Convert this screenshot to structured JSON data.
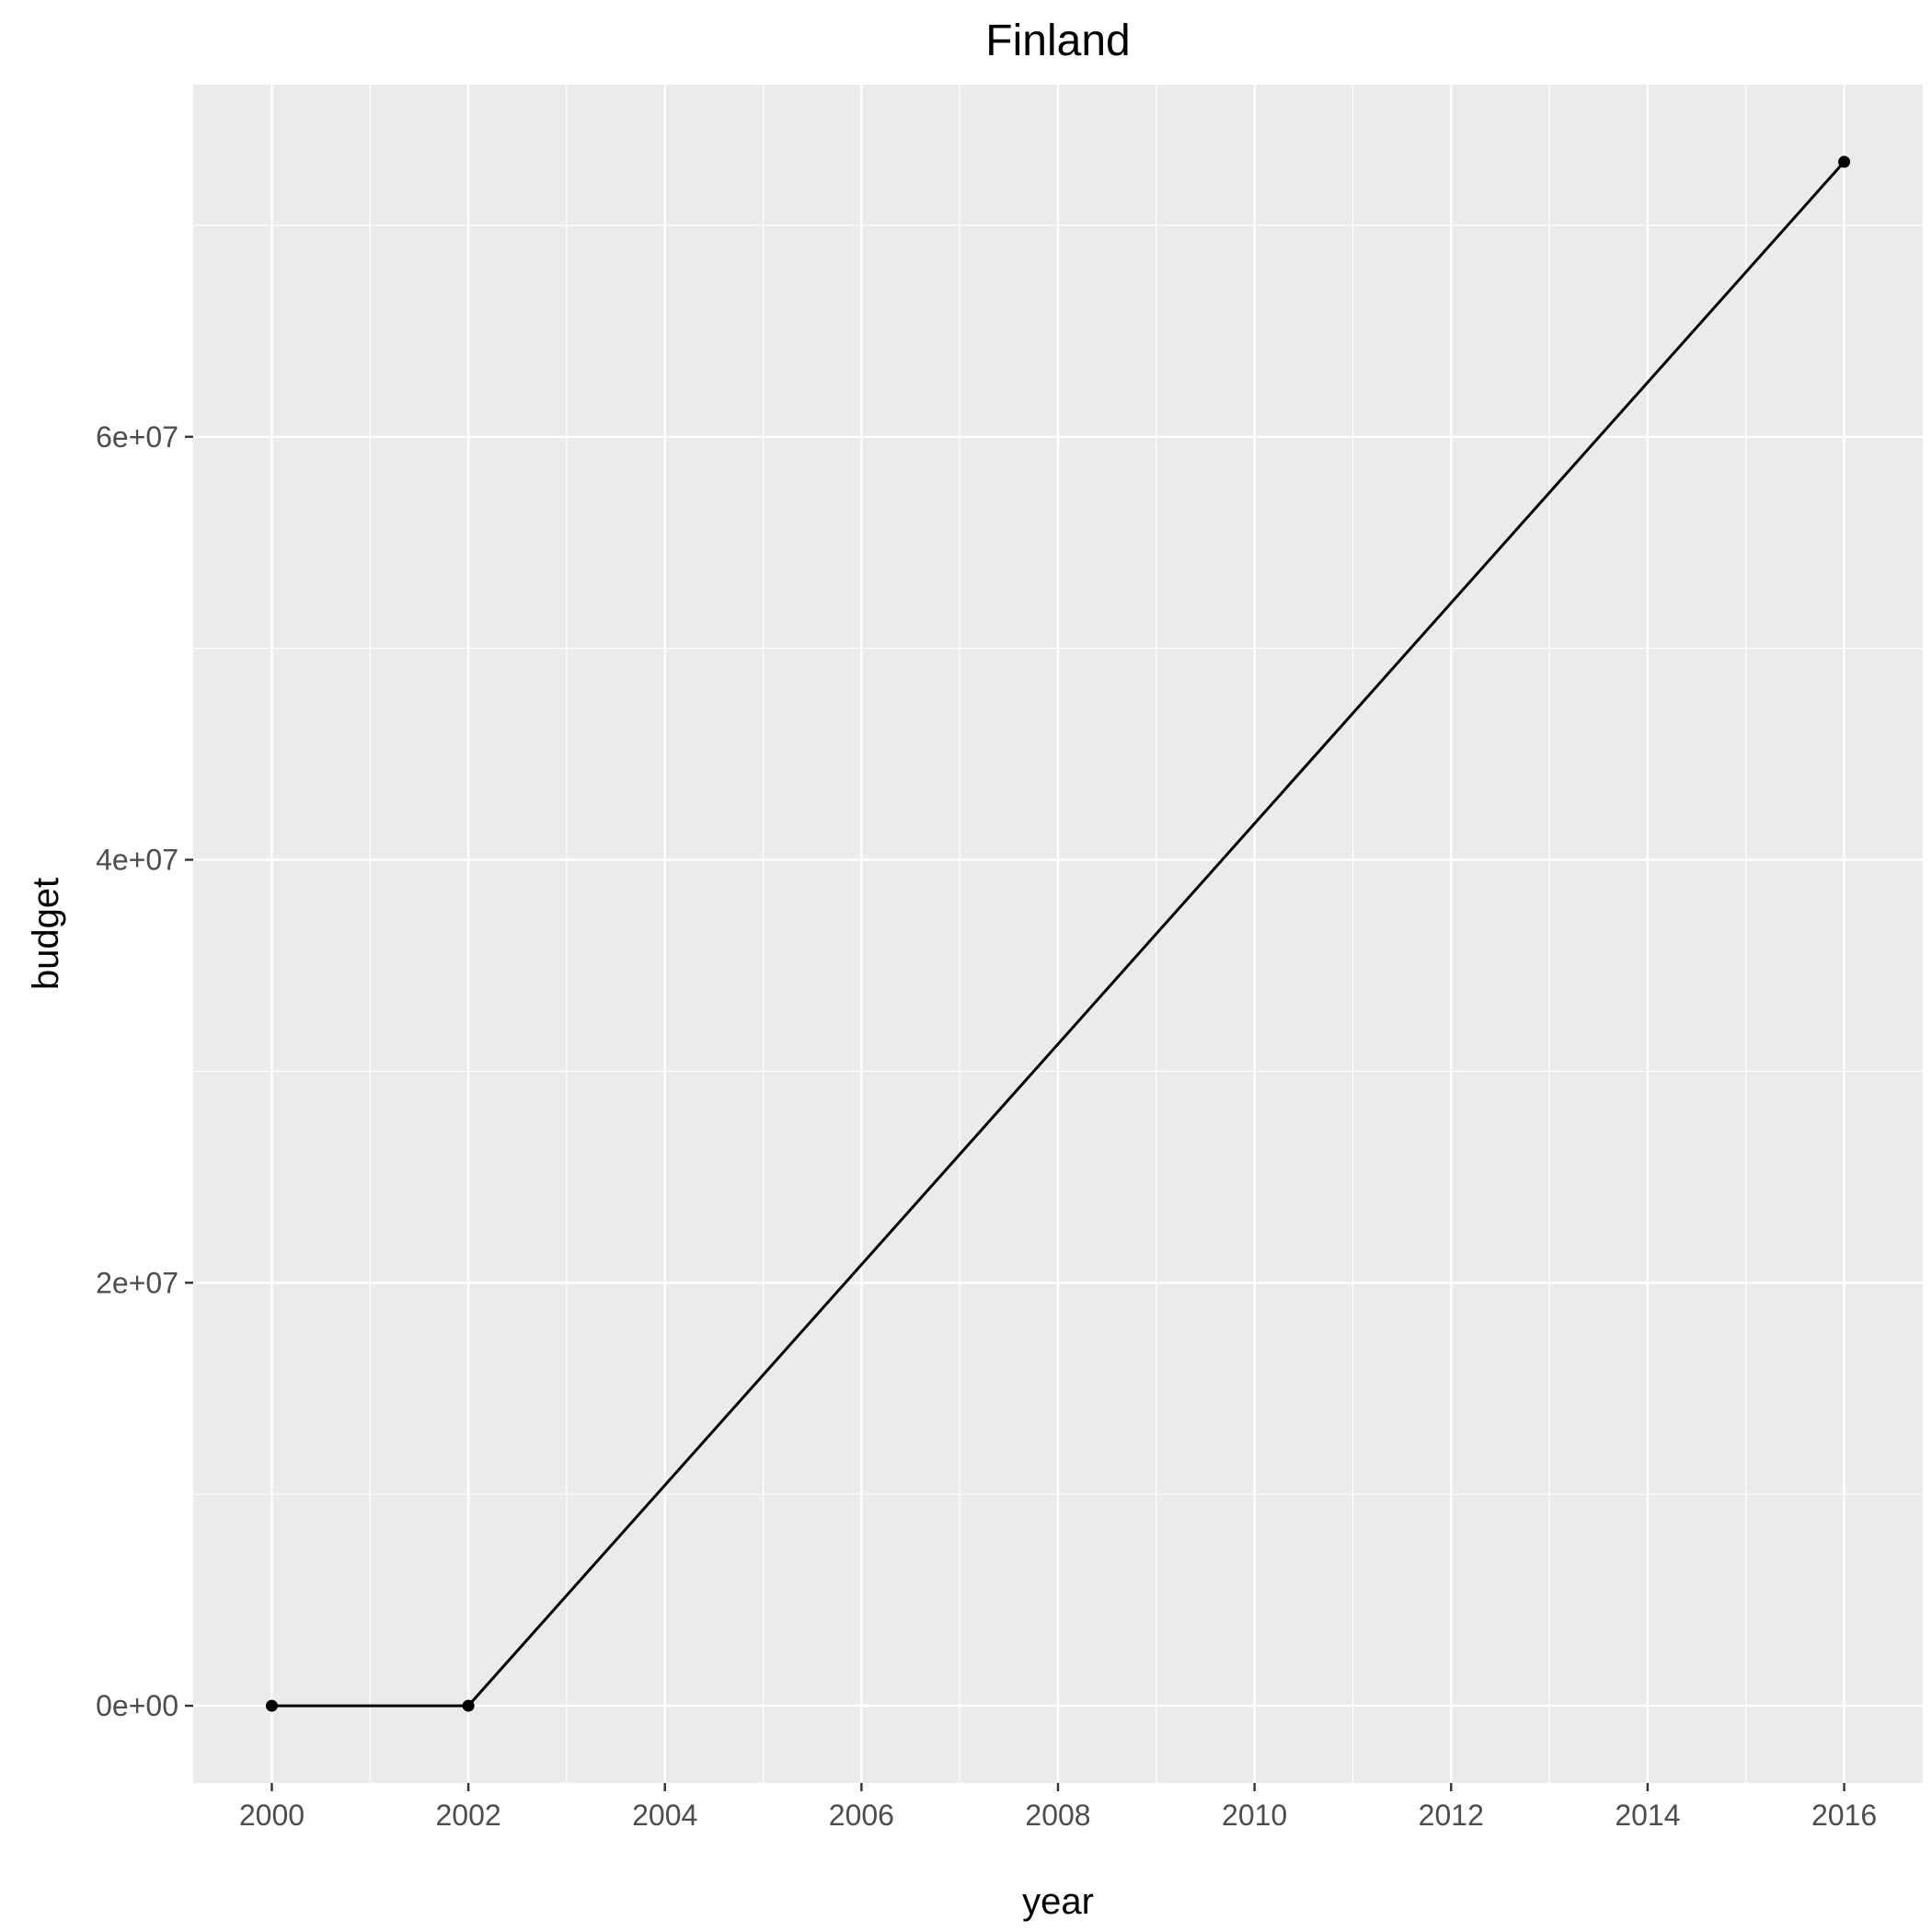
{
  "chart_data": {
    "type": "line",
    "title": "Finland",
    "xlabel": "year",
    "ylabel": "budget",
    "x": [
      2000,
      2002,
      2016
    ],
    "series": [
      {
        "values": [
          0,
          0,
          73000000
        ]
      }
    ],
    "xlim": [
      1999.2,
      2016.8
    ],
    "ylim": [
      -3650000,
      76650000
    ],
    "x_ticks": [
      2000,
      2002,
      2004,
      2006,
      2008,
      2010,
      2012,
      2014,
      2016
    ],
    "x_tick_labels": [
      "2000",
      "2002",
      "2004",
      "2006",
      "2008",
      "2010",
      "2012",
      "2014",
      "2016"
    ],
    "x_minor_ticks": [
      2001,
      2003,
      2005,
      2007,
      2009,
      2011,
      2013,
      2015
    ],
    "y_ticks": [
      0,
      20000000,
      40000000,
      60000000
    ],
    "y_tick_labels": [
      "0e+00",
      "2e+07",
      "4e+07",
      "6e+07"
    ],
    "y_minor_ticks": [
      10000000,
      30000000,
      50000000,
      70000000
    ],
    "grid": true,
    "legend": "none",
    "colors": {
      "panel_background": "#EBEBEB",
      "grid": "#FFFFFF",
      "series": "#000000",
      "tick_label": "#4D4D4D",
      "tick_mark": "#333333"
    }
  }
}
